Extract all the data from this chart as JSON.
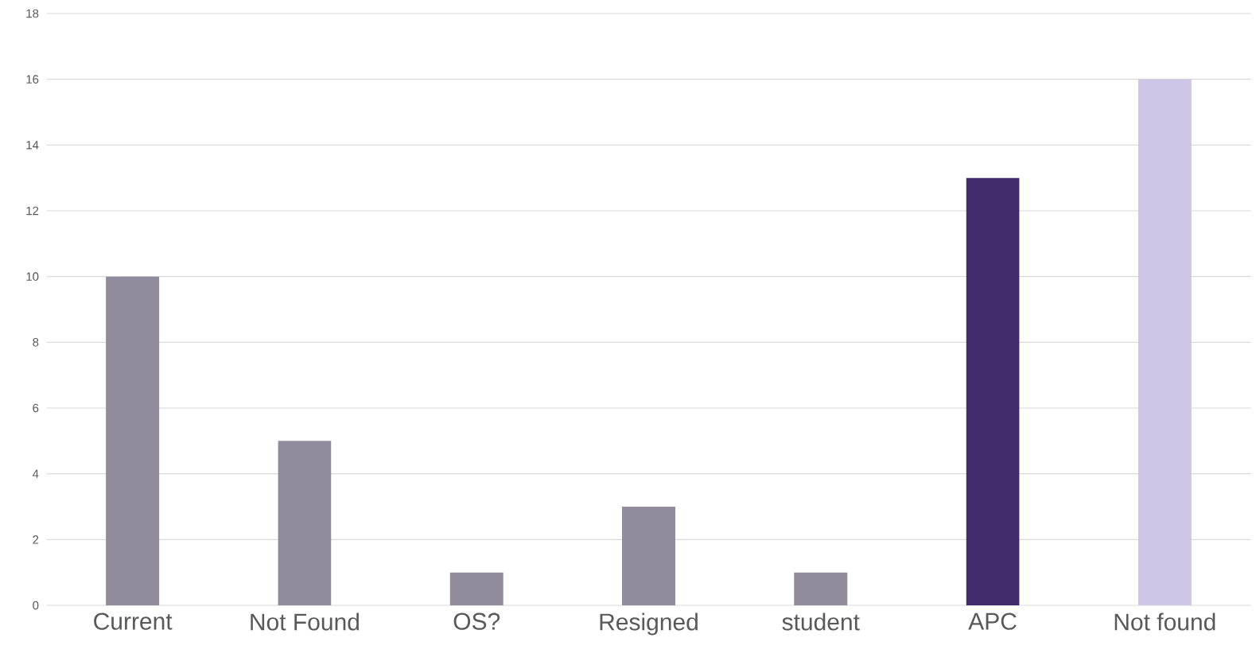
{
  "chart_data": {
    "type": "bar",
    "categories": [
      "Current",
      "Not Found",
      "OS?",
      "Resigned",
      "student",
      "APC",
      "Not found"
    ],
    "values": [
      10,
      5,
      1,
      3,
      1,
      13,
      16
    ],
    "colors": [
      "#908c9e",
      "#908c9e",
      "#908c9e",
      "#908c9e",
      "#908c9e",
      "#412d6b",
      "#cfc5e6"
    ],
    "ylim": [
      0,
      18
    ],
    "yticks": [
      0,
      2,
      4,
      6,
      8,
      10,
      12,
      14,
      16,
      18
    ],
    "grid": "y"
  }
}
